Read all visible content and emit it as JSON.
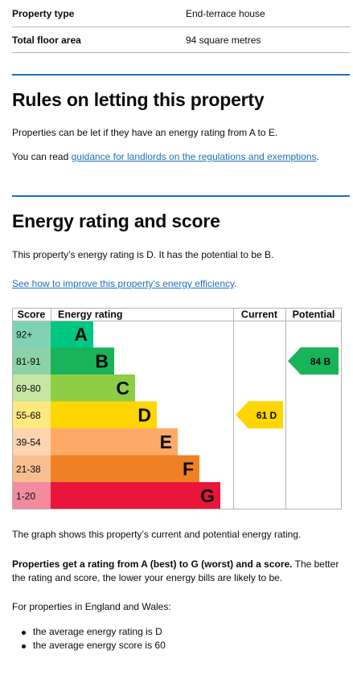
{
  "summary": {
    "rows": [
      {
        "key": "Property type",
        "value": "End-terrace house"
      },
      {
        "key": "Total floor area",
        "value": "94 square metres"
      }
    ]
  },
  "letting": {
    "heading": "Rules on letting this property",
    "para1": "Properties can be let if they have an energy rating from A to E.",
    "para2_prefix": "You can read ",
    "para2_link": "guidance for landlords on the regulations and exemptions",
    "para2_suffix": "."
  },
  "energy": {
    "heading": "Energy rating and score",
    "para1": "This property’s energy rating is D. It has the potential to be B.",
    "link": "See how to improve this property’s energy efficiency",
    "link_suffix": "."
  },
  "chart_data": {
    "type": "table",
    "headers": {
      "score": "Score",
      "rating": "Energy rating",
      "current": "Current",
      "potential": "Potential"
    },
    "bands": [
      {
        "letter": "A",
        "range": "92+",
        "color": "#00c781"
      },
      {
        "letter": "B",
        "range": "81-91",
        "color": "#19b459"
      },
      {
        "letter": "C",
        "range": "69-80",
        "color": "#8dce46"
      },
      {
        "letter": "D",
        "range": "55-68",
        "color": "#ffd500"
      },
      {
        "letter": "E",
        "range": "39-54",
        "color": "#fcaa65"
      },
      {
        "letter": "F",
        "range": "21-38",
        "color": "#ef8023"
      },
      {
        "letter": "G",
        "range": "1-20",
        "color": "#e9153b"
      }
    ],
    "score_colors": [
      "#7fd3b3",
      "#8cd1a7",
      "#c6e5a2",
      "#ffe97f",
      "#fdd4b0",
      "#f7bf90",
      "#f48a9d"
    ],
    "current": {
      "score": 61,
      "band": "D",
      "label": "61 D"
    },
    "potential": {
      "score": 84,
      "band": "B",
      "label": "84 B"
    }
  },
  "after_chart": {
    "para1": "The graph shows this property’s current and potential energy rating.",
    "para2_bold": "Properties get a rating from A (best) to G (worst) and a score.",
    "para2_rest": " The better the rating and score, the lower your energy bills are likely to be.",
    "para3": "For properties in England and Wales:",
    "bullets": [
      "the average energy rating is D",
      "the average energy score is 60"
    ]
  }
}
